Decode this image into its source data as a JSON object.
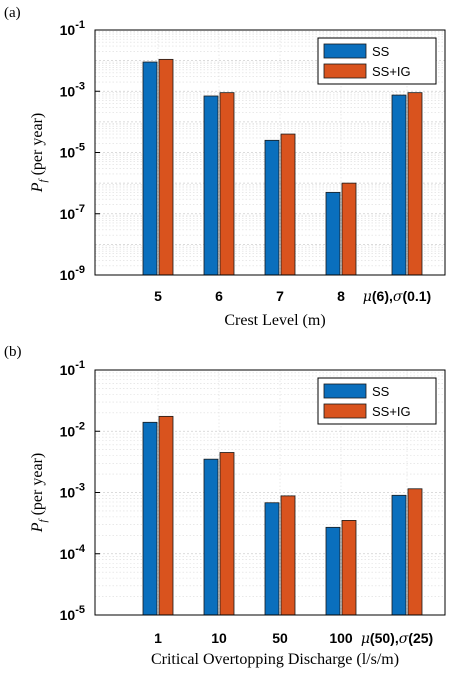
{
  "chart_data": [
    {
      "type": "bar",
      "panel": "(a)",
      "xlabel": "Crest Level (m)",
      "ylabel_main": "P",
      "ylabel_sub": "f",
      "ylabel_rest": " (per year)",
      "yscale": "log",
      "ylim": [
        1e-09,
        0.1
      ],
      "yticks": [
        {
          "value": 1e-09,
          "base": "10",
          "exp": "-9"
        },
        {
          "value": 1e-07,
          "base": "10",
          "exp": "-7"
        },
        {
          "value": 1e-05,
          "base": "10",
          "exp": "-5"
        },
        {
          "value": 0.001,
          "base": "10",
          "exp": "-3"
        },
        {
          "value": 0.1,
          "base": "10",
          "exp": "-1"
        }
      ],
      "categories": [
        "5",
        "6",
        "7",
        "8",
        "μ(6),σ(0.1)"
      ],
      "series": [
        {
          "name": "SS",
          "color": "#0a6fbd",
          "values": [
            0.009,
            0.0007,
            2.5e-05,
            5e-07,
            0.00075
          ]
        },
        {
          "name": "SS+IG",
          "color": "#d9531e",
          "values": [
            0.011,
            0.0009,
            4e-05,
            1e-06,
            0.0009
          ]
        }
      ],
      "legend": "top-right",
      "grid": true
    },
    {
      "type": "bar",
      "panel": "(b)",
      "xlabel": "Critical Overtopping Discharge (l/s/m)",
      "ylabel_main": "P",
      "ylabel_sub": "f",
      "ylabel_rest": " (per year)",
      "yscale": "log",
      "ylim": [
        1e-05,
        0.1
      ],
      "yticks": [
        {
          "value": 1e-05,
          "base": "10",
          "exp": "-5"
        },
        {
          "value": 0.0001,
          "base": "10",
          "exp": "-4"
        },
        {
          "value": 0.001,
          "base": "10",
          "exp": "-3"
        },
        {
          "value": 0.01,
          "base": "10",
          "exp": "-2"
        },
        {
          "value": 0.1,
          "base": "10",
          "exp": "-1"
        }
      ],
      "categories": [
        "1",
        "10",
        "50",
        "100",
        "μ(50),σ(25)"
      ],
      "series": [
        {
          "name": "SS",
          "color": "#0a6fbd",
          "values": [
            0.014,
            0.0035,
            0.00068,
            0.00027,
            0.0009
          ]
        },
        {
          "name": "SS+IG",
          "color": "#d9531e",
          "values": [
            0.0175,
            0.0045,
            0.00088,
            0.00035,
            0.00115
          ]
        }
      ],
      "legend": "top-right",
      "grid": true
    }
  ]
}
